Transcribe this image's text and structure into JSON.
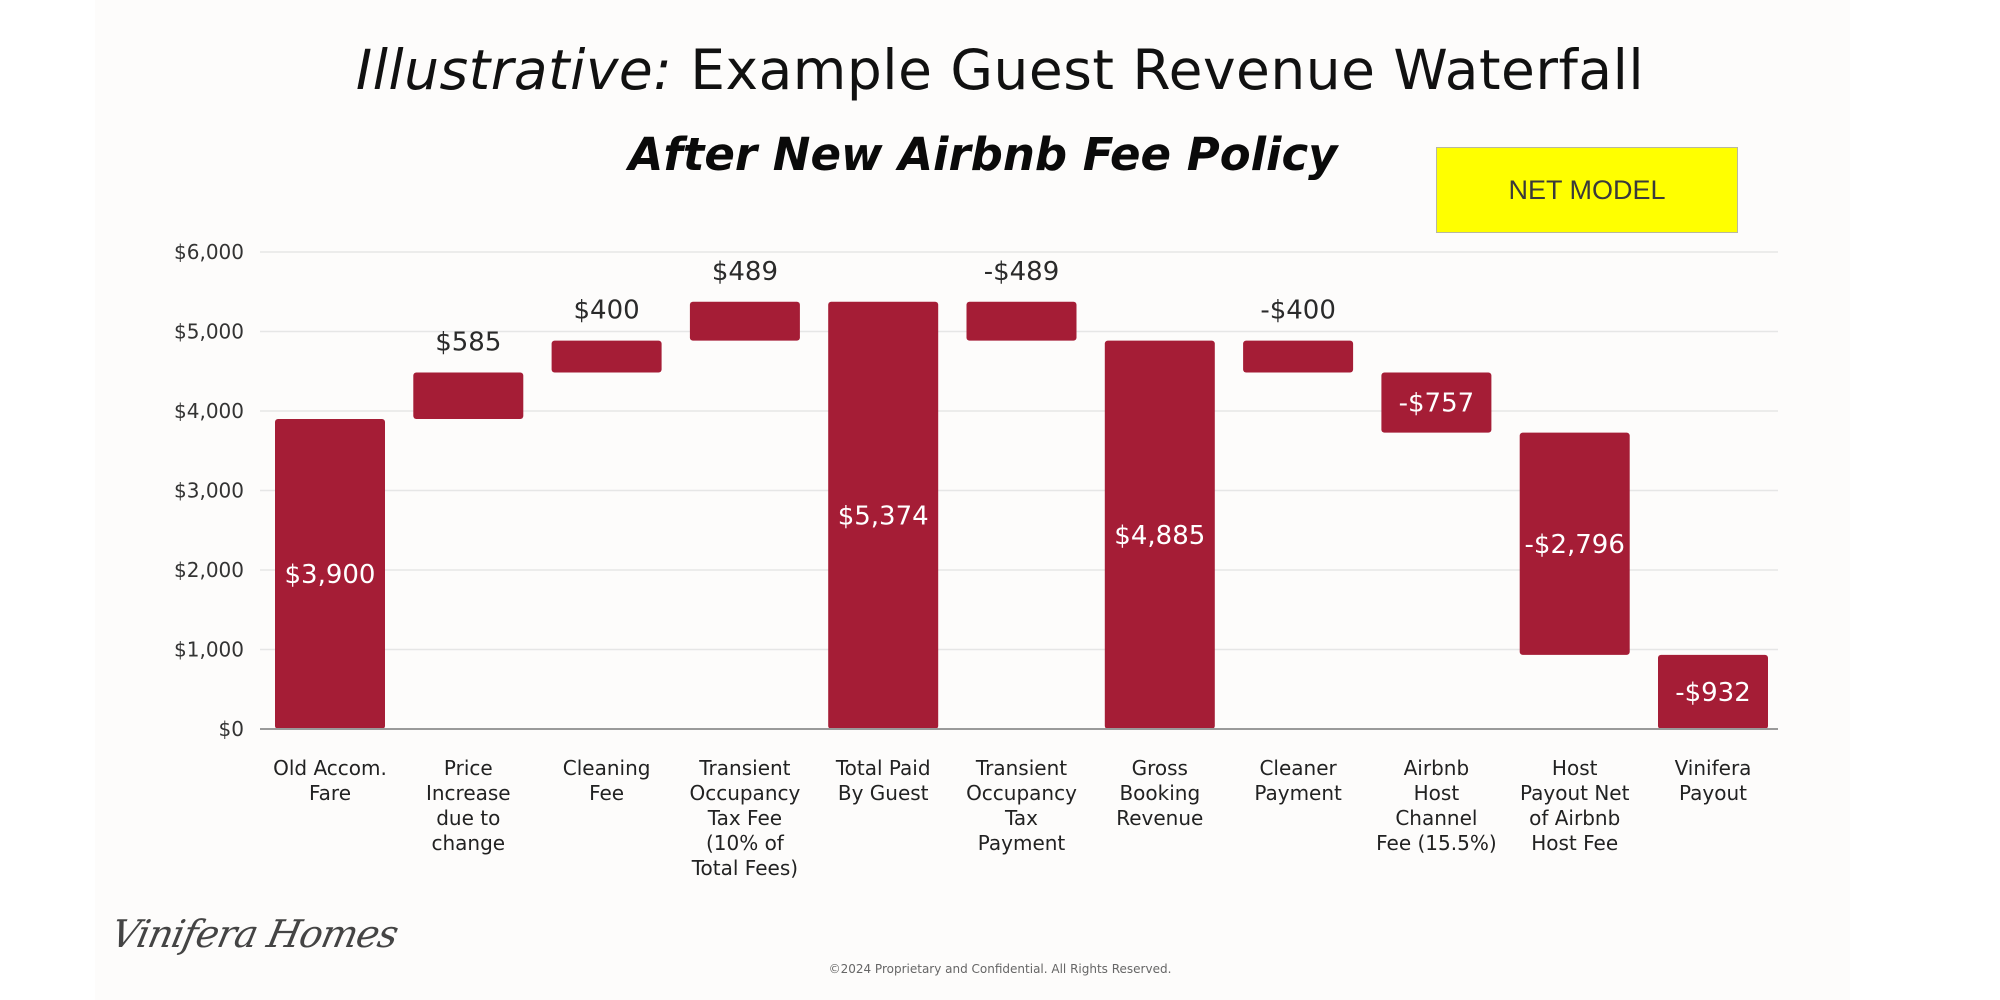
{
  "slide": {
    "title_italic": "Illustrative:",
    "title_rest": " Example Guest Revenue Waterfall",
    "subtitle": "After New Airbnb Fee Policy",
    "badge": "NET MODEL",
    "badge_color": "#ffff00",
    "logo": "Vinifera Homes",
    "footer": "©2024 Proprietary and Confidential. All Rights Reserved."
  },
  "chart_data": {
    "type": "waterfall",
    "title": "Illustrative: Example Guest Revenue Waterfall",
    "subtitle": "After New Airbnb Fee Policy",
    "bar_color": "#a51d36",
    "ylim": [
      0,
      6000
    ],
    "yticks": [
      0,
      1000,
      2000,
      3000,
      4000,
      5000,
      6000
    ],
    "ytick_labels": [
      "$0",
      "$1,000",
      "$2,000",
      "$3,000",
      "$4,000",
      "$5,000",
      "$6,000"
    ],
    "grid": true,
    "legend": "none",
    "categories": [
      [
        "Old Accom.",
        "Fare"
      ],
      [
        "Price",
        "Increase",
        "due to",
        "change"
      ],
      [
        "Cleaning",
        "Fee"
      ],
      [
        "Transient",
        "Occupancy",
        "Tax Fee",
        "(10% of",
        "Total Fees)"
      ],
      [
        "Total Paid",
        "By Guest"
      ],
      [
        "Transient",
        "Occupancy",
        "Tax",
        "Payment"
      ],
      [
        "Gross",
        "Booking",
        "Revenue"
      ],
      [
        "Cleaner",
        "Payment"
      ],
      [
        "Airbnb",
        "Host",
        "Channel",
        "Fee (15.5%)"
      ],
      [
        "Host",
        "Payout Net",
        "of Airbnb",
        "Host Fee"
      ],
      [
        "Vinifera",
        "Payout"
      ]
    ],
    "bars": [
      {
        "start": 0,
        "end": 3900,
        "label": "$3,900",
        "label_pos": "inside"
      },
      {
        "start": 3900,
        "end": 4485,
        "label": "$585",
        "label_pos": "above"
      },
      {
        "start": 4485,
        "end": 4885,
        "label": "$400",
        "label_pos": "above"
      },
      {
        "start": 4885,
        "end": 5374,
        "label": "$489",
        "label_pos": "above"
      },
      {
        "start": 0,
        "end": 5374,
        "label": "$5,374",
        "label_pos": "inside"
      },
      {
        "start": 5374,
        "end": 4885,
        "label": "-$489",
        "label_pos": "above"
      },
      {
        "start": 0,
        "end": 4885,
        "label": "$4,885",
        "label_pos": "inside"
      },
      {
        "start": 4885,
        "end": 4485,
        "label": "-$400",
        "label_pos": "above"
      },
      {
        "start": 4485,
        "end": 3728,
        "label": "-$757",
        "label_pos": "inside"
      },
      {
        "start": 3728,
        "end": 932,
        "label": "-$2,796",
        "label_pos": "inside"
      },
      {
        "start": 932,
        "end": 0,
        "label": "-$932",
        "label_pos": "inside"
      }
    ]
  }
}
